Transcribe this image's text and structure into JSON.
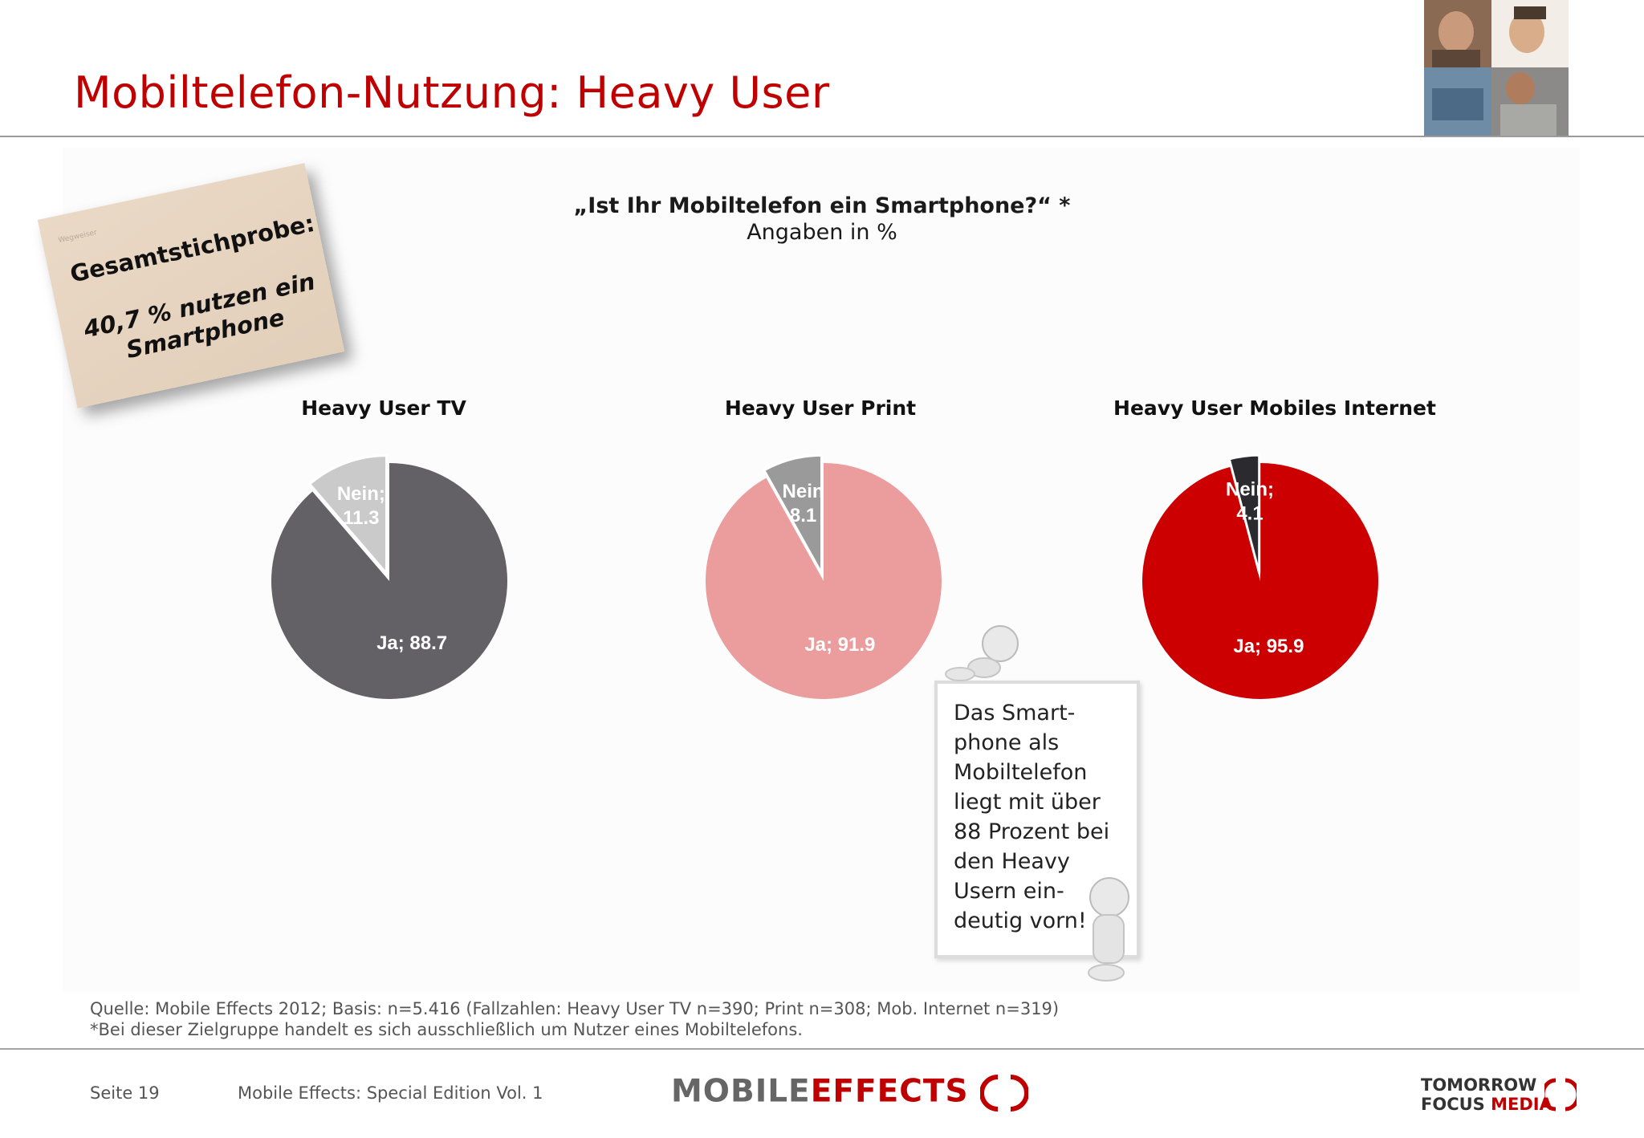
{
  "header": {
    "title": "Mobiltelefon-Nutzung: Heavy User"
  },
  "survey": {
    "question": "„Ist Ihr Mobiltelefon ein Smartphone?“ *",
    "unit": "Angaben in %"
  },
  "sticky_note": {
    "tiny_text": "Wegweiser",
    "line1": "Gesamtstichprobe:",
    "line2": "40,7 % nutzen ein Smartphone"
  },
  "chart_data": [
    {
      "type": "pie",
      "title": "Heavy User TV",
      "labels": [
        "Ja",
        "Nein"
      ],
      "values": [
        88.7,
        11.3
      ],
      "data_labels": [
        "Ja; 88.7",
        "Nein; 11.3"
      ],
      "colors": [
        "#636165",
        "#cacaca"
      ]
    },
    {
      "type": "pie",
      "title": "Heavy User Print",
      "labels": [
        "Ja",
        "Nein"
      ],
      "values": [
        91.9,
        8.1
      ],
      "data_labels": [
        "Ja; 91.9",
        "Nein 8.1"
      ],
      "colors": [
        "#eb9c9c",
        "#9a9a9a"
      ]
    },
    {
      "type": "pie",
      "title": "Heavy User Mobiles Internet",
      "labels": [
        "Ja",
        "Nein"
      ],
      "values": [
        95.9,
        4.1
      ],
      "data_labels": [
        "Ja; 95.9",
        "Nein; 4.1"
      ],
      "colors": [
        "#cc0000",
        "#2b2b2f"
      ]
    }
  ],
  "callout": {
    "text": "Das Smart-\nphone als\nMobiltelefon\nliegt mit über\n88 Prozent bei\nden Heavy\nUsern ein-\ndeutig vorn!"
  },
  "source": {
    "line1": "Quelle: Mobile Effects 2012; Basis: n=5.416 (Fallzahlen: Heavy User TV n=390; Print n=308; Mob. Internet n=319)",
    "line2": "*Bei dieser Zielgruppe handelt es sich ausschließlich um Nutzer eines Mobiltelefons."
  },
  "footer": {
    "page": "Seite 19",
    "publication": "Mobile Effects: Special Edition Vol. 1",
    "logo_left_part1": "MOBILE",
    "logo_left_part2": "EFFECTS",
    "logo_right_line1": "TOMORROW",
    "logo_right_line2a": "FOCUS",
    "logo_right_line2b": "MEDIA"
  }
}
